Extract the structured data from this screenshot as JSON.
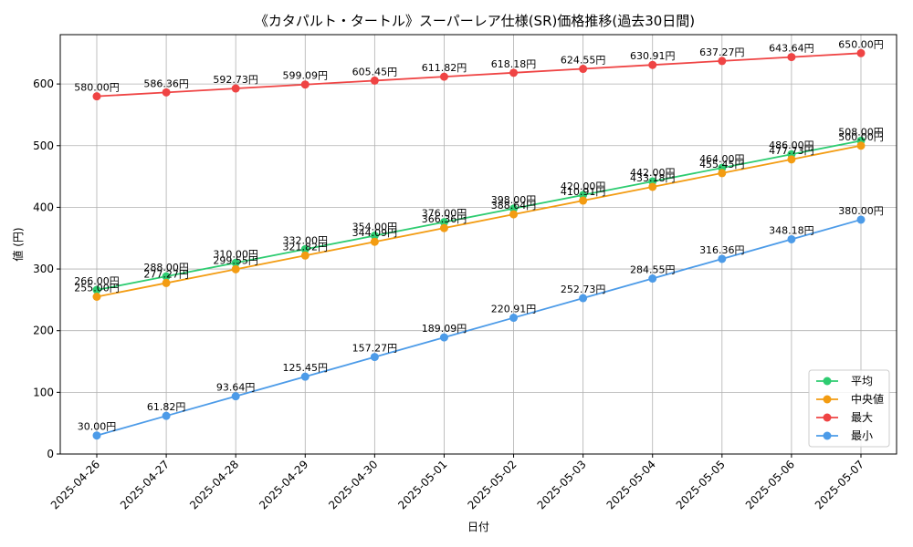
{
  "chart_data": {
    "type": "line",
    "title": "《カタパルト・タートル》スーパーレア仕様(SR)価格推移(過去30日間)",
    "xlabel": "日付",
    "ylabel": "値 (円)",
    "categories": [
      "2025-04-26",
      "2025-04-27",
      "2025-04-28",
      "2025-04-29",
      "2025-04-30",
      "2025-05-01",
      "2025-05-02",
      "2025-05-03",
      "2025-05-04",
      "2025-05-05",
      "2025-05-06",
      "2025-05-07"
    ],
    "ylim": [
      0,
      680
    ],
    "yticks": [
      0,
      100,
      200,
      300,
      400,
      500,
      600
    ],
    "grid": true,
    "legend_position": "bottom-right",
    "series": [
      {
        "name": "平均",
        "color": "#2ecc71",
        "values": [
          266.0,
          288.0,
          310.0,
          332.0,
          354.0,
          376.0,
          398.0,
          420.0,
          442.0,
          464.0,
          486.0,
          508.0
        ],
        "labels": [
          "266.00円",
          "288.00円",
          "310.00円",
          "332.00円",
          "354.00円",
          "376.00円",
          "398.00円",
          "420.00円",
          "442.00円",
          "464.00円",
          "486.00円",
          "508.00円"
        ]
      },
      {
        "name": "中央値",
        "color": "#f39c12",
        "values": [
          255.0,
          277.27,
          299.55,
          321.82,
          344.09,
          366.36,
          388.64,
          410.91,
          433.18,
          455.45,
          477.73,
          500.0
        ],
        "labels": [
          "255.00円",
          "277.27円",
          "299.55円",
          "321.82円",
          "344.09円",
          "366.36円",
          "388.64円",
          "410.91円",
          "433.18円",
          "455.45円",
          "477.73円",
          "500.00円"
        ]
      },
      {
        "name": "最大",
        "color": "#ef4444",
        "values": [
          580.0,
          586.36,
          592.73,
          599.09,
          605.45,
          611.82,
          618.18,
          624.55,
          630.91,
          637.27,
          643.64,
          650.0
        ],
        "labels": [
          "580.00円",
          "586.36円",
          "592.73円",
          "599.09円",
          "605.45円",
          "611.82円",
          "618.18円",
          "624.55円",
          "630.91円",
          "637.27円",
          "643.64円",
          "650.00円"
        ]
      },
      {
        "name": "最小",
        "color": "#4c9be8",
        "values": [
          30.0,
          61.82,
          93.64,
          125.45,
          157.27,
          189.09,
          220.91,
          252.73,
          284.55,
          316.36,
          348.18,
          380.0
        ],
        "labels": [
          "30.00円",
          "61.82円",
          "93.64円",
          "125.45円",
          "157.27円",
          "189.09円",
          "220.91円",
          "252.73円",
          "284.55円",
          "316.36円",
          "348.18円",
          "380.00円"
        ]
      }
    ]
  }
}
